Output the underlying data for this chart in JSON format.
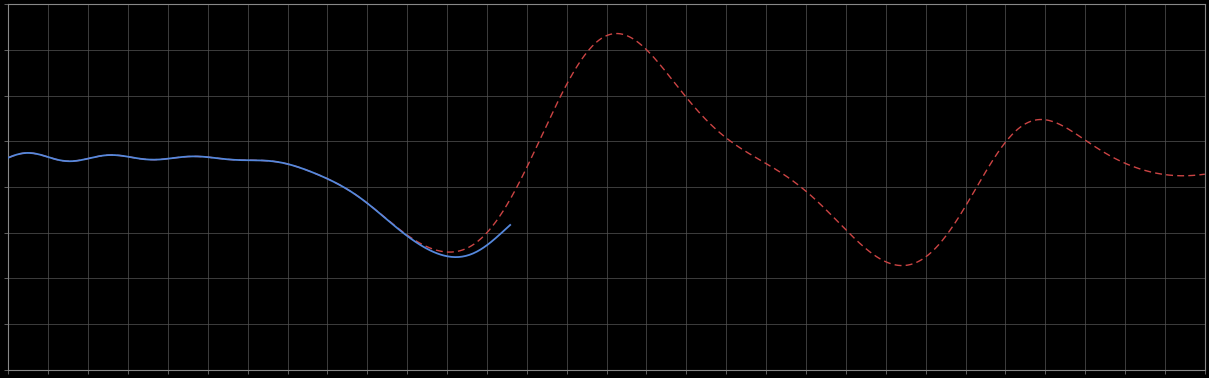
{
  "background_color": "#000000",
  "plot_bg_color": "#000000",
  "grid_color": "#555555",
  "blue_color": "#5588dd",
  "red_color": "#cc4444",
  "xlim": [
    0,
    100
  ],
  "ylim": [
    0,
    100
  ],
  "figsize": [
    12.09,
    3.78
  ],
  "dpi": 100,
  "spine_color": "#888888",
  "tick_color": "#888888",
  "grid_nx": 30,
  "grid_ny": 8
}
